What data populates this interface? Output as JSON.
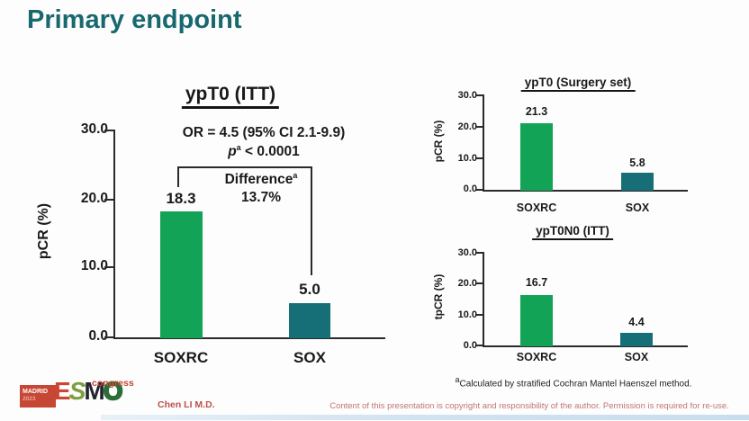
{
  "slide": {
    "title": "Primary endpoint",
    "presenter": "Chen LI M.D.",
    "copyright_notice": "Content of this presentation is copyright and responsibility of the author. Permission is required for re-use.",
    "footnote": {
      "sup": "a",
      "text": "Calculated by stratified Cochran Mantel Haenszel method."
    },
    "logo": {
      "venue": "MADRID",
      "year": "2023",
      "letters": [
        "E",
        "S",
        "M",
        "O"
      ],
      "event": "congress"
    }
  },
  "colors": {
    "title_teal": "#17696F",
    "soxrc_green": "#13A356",
    "sox_teal": "#166F77",
    "presenter_red": "#C0504D",
    "copyright_red": "#C17573",
    "logo_red": "#C64734"
  },
  "chart_data": [
    {
      "type": "bar",
      "title": "ypT0 (ITT)",
      "ylabel": "pCR (%)",
      "categories": [
        "SOXRC",
        "SOX"
      ],
      "values": [
        18.3,
        5.0
      ],
      "value_labels": [
        "18.3",
        "5.0"
      ],
      "ylim": [
        0,
        30
      ],
      "yticks": [
        "30.0",
        "20.0",
        "10.0",
        "0.0"
      ],
      "grid": false,
      "series_colors": [
        "#13A356",
        "#166F77"
      ],
      "annotations": {
        "or_line": "OR = 4.5 (95% CI 2.1-9.9)",
        "p_symbol": "p",
        "p_sup": "a",
        "p_rest": "< 0.0001",
        "difference_label": "Difference",
        "difference_sup": "a",
        "difference_value": "13.7%"
      }
    },
    {
      "type": "bar",
      "title": "ypT0 (Surgery set)",
      "ylabel": "pCR (%)",
      "categories": [
        "SOXRC",
        "SOX"
      ],
      "values": [
        21.3,
        5.8
      ],
      "value_labels": [
        "21.3",
        "5.8"
      ],
      "ylim": [
        0,
        30
      ],
      "yticks": [
        "30.0",
        "20.0",
        "10.0",
        "0.0"
      ],
      "grid": false
    },
    {
      "type": "bar",
      "title": "ypT0N0 (ITT)",
      "ylabel": "tpCR (%)",
      "categories": [
        "SOXRC",
        "SOX"
      ],
      "values": [
        16.7,
        4.4
      ],
      "value_labels": [
        "16.7",
        "4.4"
      ],
      "ylim": [
        0,
        30
      ],
      "yticks": [
        "30.0",
        "20.0",
        "10.0",
        "0.0"
      ],
      "grid": false
    }
  ]
}
